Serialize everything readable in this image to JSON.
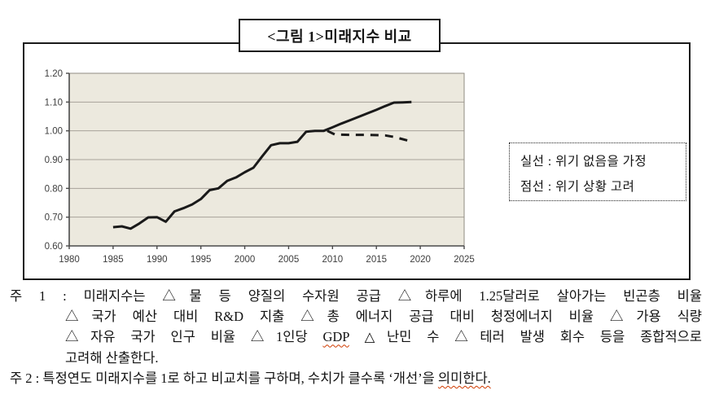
{
  "figure": {
    "title": "<그림 1>미래지수 비교"
  },
  "legend": {
    "solid_label": "실선 : 위기 없음을 가정",
    "dashed_label": "점선 : 위기 상황 고려"
  },
  "chart_data": {
    "type": "line",
    "title": "<그림 1>미래지수 비교",
    "xlabel": "",
    "ylabel": "",
    "xlim": [
      1980,
      2025
    ],
    "ylim": [
      0.6,
      1.2
    ],
    "x_ticks": [
      1980,
      1985,
      1990,
      1995,
      2000,
      2005,
      2010,
      2015,
      2020,
      2025
    ],
    "y_ticks": [
      0.6,
      0.7,
      0.8,
      0.9,
      1.0,
      1.1,
      1.2
    ],
    "grid": true,
    "legend_position": "right-outside-box",
    "plot_bg": "#ece9de",
    "grid_color": "#a8a29a",
    "axis_color": "#4a4a4a",
    "line_color": "#1a1a1a",
    "series": [
      {
        "name": "실선(위기 없음을 가정)",
        "style": "solid",
        "points": [
          [
            1985,
            0.665
          ],
          [
            1986,
            0.668
          ],
          [
            1987,
            0.66
          ],
          [
            1988,
            0.678
          ],
          [
            1989,
            0.699
          ],
          [
            1990,
            0.7
          ],
          [
            1991,
            0.684
          ],
          [
            1992,
            0.72
          ],
          [
            1993,
            0.731
          ],
          [
            1994,
            0.744
          ],
          [
            1995,
            0.763
          ],
          [
            1996,
            0.794
          ],
          [
            1997,
            0.8
          ],
          [
            1998,
            0.826
          ],
          [
            1999,
            0.838
          ],
          [
            2000,
            0.856
          ],
          [
            2001,
            0.872
          ],
          [
            2002,
            0.912
          ],
          [
            2003,
            0.95
          ],
          [
            2004,
            0.957
          ],
          [
            2005,
            0.957
          ],
          [
            2006,
            0.962
          ],
          [
            2007,
            0.997
          ],
          [
            2008,
            1.0
          ],
          [
            2009,
            1.0
          ],
          [
            2010,
            1.012
          ],
          [
            2011,
            1.025
          ],
          [
            2012,
            1.037
          ],
          [
            2013,
            1.049
          ],
          [
            2014,
            1.061
          ],
          [
            2015,
            1.073
          ],
          [
            2016,
            1.086
          ],
          [
            2017,
            1.098
          ],
          [
            2018,
            1.099
          ],
          [
            2019,
            1.1
          ]
        ]
      },
      {
        "name": "점선(위기 상황 고려)",
        "style": "dashed",
        "points": [
          [
            2009.4,
            1.0
          ],
          [
            2010.3,
            0.987
          ],
          [
            2012,
            0.986
          ],
          [
            2014,
            0.986
          ],
          [
            2016,
            0.984
          ],
          [
            2017,
            0.979
          ],
          [
            2018.6,
            0.966
          ]
        ]
      }
    ]
  },
  "notes": {
    "note1_label": "주 1 :",
    "note1_line1": "미래지수는 △물 등 양질의 수자원 공급 △하루에 1.25달러로 살아가는 빈곤층 비율",
    "note1_line2": "△국가 예산 대비 R&D 지출 △총 에너지 공급 대비 청정에너지 비율 △가용 식량",
    "note1_line3_pre": "△자유 국가 인구 비율 △1인당 ",
    "note1_line3_gdp": "GDP",
    "note1_line3_post": " △난민 수 △테러 발생 회수 등을 종합적으로",
    "note1_line4": "고려해 산출한다.",
    "note2_label": "주 2 :",
    "note2_pre": "특정연도 미래지수를 1로 하고 비교치를 구하며, 수치가 클수록 ‘개선’을 ",
    "note2_squiggle": "의미한다."
  },
  "colors": {
    "frame": "#1a1a1a",
    "spellcheck_squiggle": "#cf3a00",
    "plot_background": "#ece9de"
  }
}
